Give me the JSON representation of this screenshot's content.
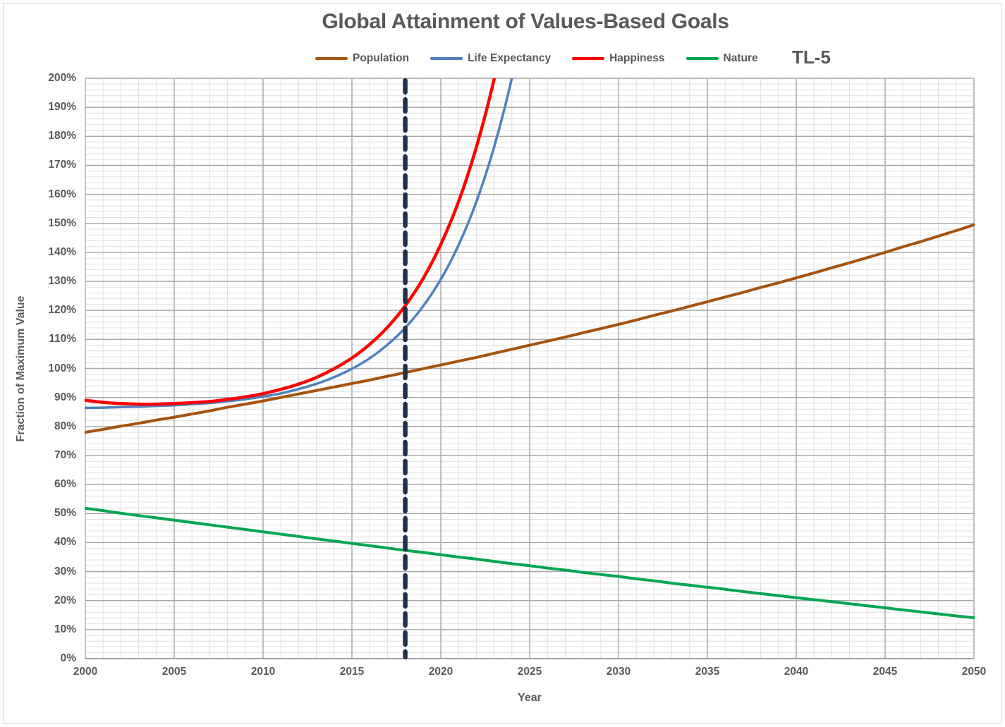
{
  "chart_data": {
    "type": "line",
    "title": "Global Attainment of Values-Based Goals",
    "annotation": "TL-5",
    "xlabel": "Year",
    "ylabel": "Fraction of Maximum Value",
    "x_range": [
      2000,
      2050
    ],
    "y_range_percent": [
      0,
      200
    ],
    "major_grid": {
      "x_step_years": 5,
      "y_step_percent": 10
    },
    "minor_grid": {
      "x_step_years": 1,
      "y_step_percent": 2
    },
    "grid_on": true,
    "legend_position": "top",
    "reference_line": {
      "type": "vertical-dashed",
      "x_year": 2018,
      "color": "#1F3048"
    },
    "colors": {
      "title_text": "#595959",
      "axis_text": "#595959",
      "major_grid": "#A6A6A6",
      "minor_grid": "#E0E0E0",
      "bottom_axis": "#8C8C8C",
      "left_axis": "#BFBFBF",
      "frame_border": "#D9D9D9"
    },
    "y_ticks": [
      "0%",
      "10%",
      "20%",
      "30%",
      "40%",
      "50%",
      "60%",
      "70%",
      "80%",
      "90%",
      "100%",
      "110%",
      "120%",
      "130%",
      "140%",
      "150%",
      "160%",
      "170%",
      "180%",
      "190%",
      "200%"
    ],
    "x_ticks": [
      "2000",
      "2005",
      "2010",
      "2015",
      "2020",
      "2025",
      "2030",
      "2035",
      "2040",
      "2045",
      "2050"
    ],
    "years": [
      2000,
      2001,
      2002,
      2003,
      2004,
      2005,
      2006,
      2007,
      2008,
      2009,
      2010,
      2011,
      2012,
      2013,
      2014,
      2015,
      2016,
      2017,
      2018,
      2019,
      2020,
      2021,
      2022,
      2023,
      2024,
      2025,
      2026,
      2027,
      2028,
      2029,
      2030,
      2031,
      2032,
      2033,
      2034,
      2035,
      2036,
      2037,
      2038,
      2039,
      2040,
      2041,
      2042,
      2043,
      2044,
      2045,
      2046,
      2047,
      2048,
      2049,
      2050
    ],
    "series": [
      {
        "name": "Population",
        "color": "#A6530F",
        "stroke_width": 4,
        "values_percent": [
          78.0,
          79.0,
          80.1,
          81.1,
          82.2,
          83.2,
          84.3,
          85.4,
          86.6,
          87.7,
          88.8,
          90.0,
          91.2,
          92.4,
          93.6,
          94.8,
          96.0,
          97.3,
          98.6,
          99.9,
          101.2,
          102.5,
          103.8,
          105.2,
          106.6,
          108.0,
          109.4,
          110.8,
          112.3,
          113.7,
          115.2,
          116.7,
          118.3,
          119.8,
          121.4,
          123.0,
          124.6,
          126.2,
          127.9,
          129.5,
          131.2,
          132.9,
          134.7,
          136.4,
          138.2,
          140.0,
          141.9,
          143.7,
          145.6,
          147.5,
          149.5
        ]
      },
      {
        "name": "Life Expectancy",
        "color": "#4F81BD",
        "stroke_width": 3.5,
        "values_percent": [
          86.4,
          86.5,
          86.7,
          86.8,
          87.1,
          87.3,
          87.7,
          88.1,
          88.7,
          89.4,
          90.3,
          91.4,
          92.9,
          94.7,
          97.0,
          99.9,
          103.5,
          108.2,
          114.0,
          121.4,
          130.7,
          142.5,
          157.4,
          176.3,
          200.1,
          230.2,
          null,
          null,
          null,
          null,
          null,
          null,
          null,
          null,
          null,
          null,
          null,
          null,
          null,
          null,
          null,
          null,
          null,
          null,
          null,
          null,
          null,
          null,
          null,
          null,
          null
        ]
      },
      {
        "name": "Happiness",
        "color": "#FF0000",
        "stroke_width": 4.5,
        "values_percent": [
          89.0,
          88.3,
          87.9,
          87.7,
          87.7,
          87.9,
          88.2,
          88.6,
          89.3,
          90.2,
          91.3,
          92.8,
          94.6,
          96.9,
          99.9,
          103.6,
          108.3,
          114.2,
          121.6,
          130.9,
          142.7,
          157.5,
          176.2,
          199.7,
          229.3,
          null,
          null,
          null,
          null,
          null,
          null,
          null,
          null,
          null,
          null,
          null,
          null,
          null,
          null,
          null,
          null,
          null,
          null,
          null,
          null,
          null,
          null,
          null,
          null,
          null,
          null
        ]
      },
      {
        "name": "Nature",
        "color": "#00A651",
        "stroke_width": 4,
        "values_percent": [
          51.8,
          51.0,
          50.1,
          49.3,
          48.5,
          47.7,
          46.9,
          46.1,
          45.3,
          44.5,
          43.7,
          42.9,
          42.1,
          41.3,
          40.5,
          39.7,
          38.9,
          38.1,
          37.3,
          36.6,
          35.8,
          35.0,
          34.3,
          33.5,
          32.7,
          32.0,
          31.2,
          30.5,
          29.7,
          29.0,
          28.3,
          27.5,
          26.8,
          26.0,
          25.3,
          24.6,
          23.9,
          23.1,
          22.4,
          21.7,
          21.0,
          20.3,
          19.6,
          18.9,
          18.2,
          17.5,
          16.8,
          16.1,
          15.4,
          14.7,
          14.1
        ]
      }
    ]
  }
}
